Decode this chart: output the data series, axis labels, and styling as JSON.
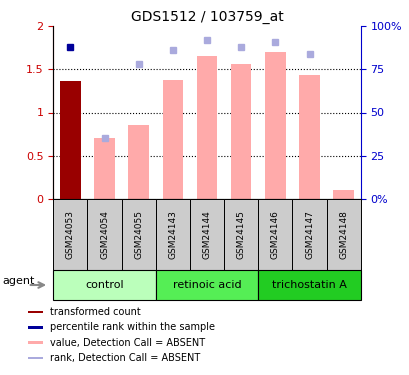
{
  "title": "GDS1512 / 103759_at",
  "samples": [
    "GSM24053",
    "GSM24054",
    "GSM24055",
    "GSM24143",
    "GSM24144",
    "GSM24145",
    "GSM24146",
    "GSM24147",
    "GSM24148"
  ],
  "bar_values": [
    1.36,
    null,
    null,
    null,
    null,
    null,
    null,
    null,
    null
  ],
  "bar_absent_values": [
    null,
    0.7,
    0.85,
    1.38,
    1.65,
    1.56,
    1.7,
    1.44,
    0.1
  ],
  "ylim": [
    0,
    2.0
  ],
  "y2lim": [
    0,
    100
  ],
  "yticks": [
    0,
    0.5,
    1.0,
    1.5,
    2.0
  ],
  "y2ticks": [
    0,
    25,
    50,
    75,
    100
  ],
  "ytick_labels": [
    "0",
    "0.5",
    "1",
    "1.5",
    "2"
  ],
  "y2tick_labels": [
    "0%",
    "25",
    "50",
    "75",
    "100%"
  ],
  "left_axis_color": "#cc0000",
  "right_axis_color": "#0000cc",
  "bar_color_present": "#990000",
  "bar_color_absent": "#ffaaaa",
  "rank_dot_present": "#000099",
  "rank_dot_absent": "#aaaadd",
  "top_blue_squares_y2_val": [
    88,
    null,
    null,
    86,
    92,
    88,
    91,
    84,
    null
  ],
  "absent_rank_dots_y2": [
    null,
    35,
    78,
    null,
    null,
    null,
    null,
    null,
    null
  ],
  "legend_items": [
    {
      "color": "#990000",
      "label": "transformed count"
    },
    {
      "color": "#000099",
      "label": "percentile rank within the sample"
    },
    {
      "color": "#ffaaaa",
      "label": "value, Detection Call = ABSENT"
    },
    {
      "color": "#aaaadd",
      "label": "rank, Detection Call = ABSENT"
    }
  ],
  "agent_label": "agent",
  "group_labels": [
    "control",
    "retinoic acid",
    "trichostatin A"
  ],
  "group_colors": [
    "#bbffbb",
    "#55ee55",
    "#22cc22"
  ],
  "group_ranges": [
    [
      0,
      2
    ],
    [
      3,
      5
    ],
    [
      6,
      8
    ]
  ]
}
